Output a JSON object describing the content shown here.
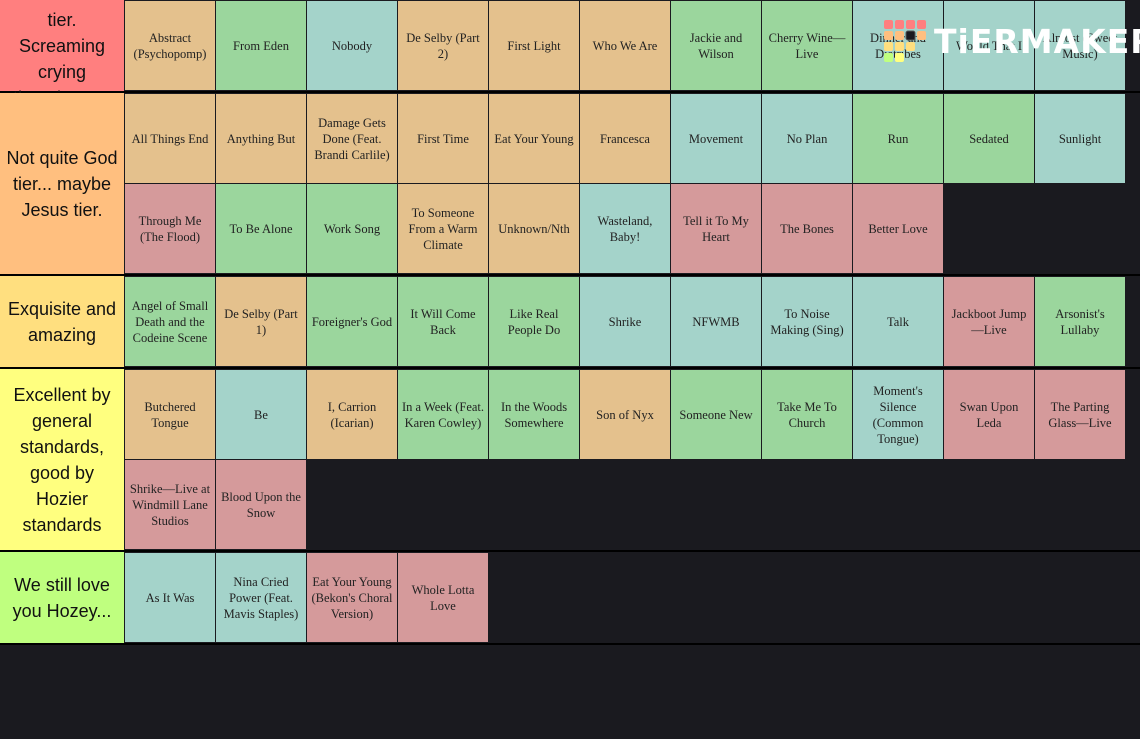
{
  "logo": "TiERMAKER",
  "tiers": [
    {
      "label": "Absolute God tier. Screaming crying throwing up.",
      "color": "#ff7f7f",
      "items": [
        {
          "text": "Abstract (Psychopomp)",
          "color": "#e4c18d"
        },
        {
          "text": "From Eden",
          "color": "#9bd69d"
        },
        {
          "text": "Nobody",
          "color": "#a4d3ca"
        },
        {
          "text": "De Selby (Part 2)",
          "color": "#e4c18d"
        },
        {
          "text": "First Light",
          "color": "#e4c18d"
        },
        {
          "text": "Who We Are",
          "color": "#e4c18d"
        },
        {
          "text": "Jackie and Wilson",
          "color": "#9bd69d"
        },
        {
          "text": "Cherry Wine—Live",
          "color": "#9bd69d"
        },
        {
          "text": "Dinner and Diatribes",
          "color": "#a4d3ca"
        },
        {
          "text": "Would That I",
          "color": "#a4d3ca"
        },
        {
          "text": "Almost (Sweet Music)",
          "color": "#a4d3ca"
        }
      ]
    },
    {
      "label": "Not quite God tier... maybe Jesus tier.",
      "color": "#ffbf7f",
      "items": [
        {
          "text": "All Things End",
          "color": "#e4c18d"
        },
        {
          "text": "Anything But",
          "color": "#e4c18d"
        },
        {
          "text": "Damage Gets Done (Feat. Brandi Carlile)",
          "color": "#e4c18d"
        },
        {
          "text": "First Time",
          "color": "#e4c18d"
        },
        {
          "text": "Eat Your Young",
          "color": "#e4c18d"
        },
        {
          "text": "Francesca",
          "color": "#e4c18d"
        },
        {
          "text": "Movement",
          "color": "#a4d3ca"
        },
        {
          "text": "No Plan",
          "color": "#a4d3ca"
        },
        {
          "text": "Run",
          "color": "#9bd69d"
        },
        {
          "text": "Sedated",
          "color": "#9bd69d"
        },
        {
          "text": "Sunlight",
          "color": "#a4d3ca"
        },
        {
          "text": "Through Me (The Flood)",
          "color": "#d59a9b"
        },
        {
          "text": "To Be Alone",
          "color": "#9bd69d"
        },
        {
          "text": "Work Song",
          "color": "#9bd69d"
        },
        {
          "text": "To Someone From a Warm Climate",
          "color": "#e4c18d"
        },
        {
          "text": "Unknown/Nth",
          "color": "#e4c18d"
        },
        {
          "text": "Wasteland, Baby!",
          "color": "#a4d3ca"
        },
        {
          "text": "Tell it To My Heart",
          "color": "#d59a9b"
        },
        {
          "text": "The Bones",
          "color": "#d59a9b"
        },
        {
          "text": "Better Love",
          "color": "#d59a9b"
        }
      ]
    },
    {
      "label": "Exquisite and amazing",
      "color": "#ffdf7f",
      "items": [
        {
          "text": "Angel of Small Death and the Codeine Scene",
          "color": "#9bd69d"
        },
        {
          "text": "De Selby (Part 1)",
          "color": "#e4c18d"
        },
        {
          "text": "Foreigner's God",
          "color": "#9bd69d"
        },
        {
          "text": "It Will Come Back",
          "color": "#9bd69d"
        },
        {
          "text": "Like Real People Do",
          "color": "#9bd69d"
        },
        {
          "text": "Shrike",
          "color": "#a4d3ca"
        },
        {
          "text": "NFWMB",
          "color": "#a4d3ca"
        },
        {
          "text": "To Noise Making (Sing)",
          "color": "#a4d3ca"
        },
        {
          "text": "Talk",
          "color": "#a4d3ca"
        },
        {
          "text": "Jackboot Jump—Live",
          "color": "#d59a9b"
        },
        {
          "text": "Arsonist's Lullaby",
          "color": "#9bd69d"
        }
      ]
    },
    {
      "label": "Excellent by general standards, good by Hozier standards",
      "color": "#ffff7f",
      "items": [
        {
          "text": "Butchered Tongue",
          "color": "#e4c18d"
        },
        {
          "text": "Be",
          "color": "#a4d3ca"
        },
        {
          "text": "I, Carrion (Icarian)",
          "color": "#e4c18d"
        },
        {
          "text": "In a Week (Feat. Karen Cowley)",
          "color": "#9bd69d"
        },
        {
          "text": "In the Woods Somewhere",
          "color": "#9bd69d"
        },
        {
          "text": "Son of Nyx",
          "color": "#e4c18d"
        },
        {
          "text": "Someone New",
          "color": "#9bd69d"
        },
        {
          "text": "Take Me To Church",
          "color": "#9bd69d"
        },
        {
          "text": "Moment's Silence (Common Tongue)",
          "color": "#a4d3ca"
        },
        {
          "text": "Swan Upon Leda",
          "color": "#d59a9b"
        },
        {
          "text": "The Parting Glass—Live",
          "color": "#d59a9b"
        },
        {
          "text": "Shrike—Live at Windmill Lane Studios",
          "color": "#d59a9b"
        },
        {
          "text": "Blood Upon the Snow",
          "color": "#d59a9b"
        }
      ]
    },
    {
      "label": "We still love you Hozey...",
      "color": "#bfff7f",
      "items": [
        {
          "text": "As It Was",
          "color": "#a4d3ca"
        },
        {
          "text": "Nina Cried Power (Feat. Mavis Staples)",
          "color": "#a4d3ca"
        },
        {
          "text": "Eat Your Young (Bekon's Choral Version)",
          "color": "#d59a9b"
        },
        {
          "text": "Whole Lotta Love",
          "color": "#d59a9b"
        }
      ]
    }
  ]
}
